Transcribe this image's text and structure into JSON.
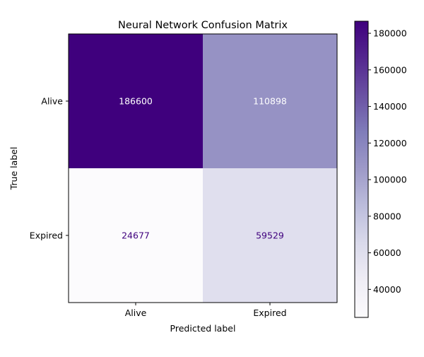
{
  "chart_data": {
    "type": "heatmap",
    "title": "Neural Network Confusion Matrix",
    "xlabel": "Predicted label",
    "ylabel": "True label",
    "x_categories": [
      "Alive",
      "Expired"
    ],
    "y_categories": [
      "Alive",
      "Expired"
    ],
    "values": [
      [
        186600,
        110898
      ],
      [
        24677,
        59529
      ]
    ],
    "colormap": "Purples",
    "colorbar": {
      "range": [
        24677,
        186600
      ],
      "ticks": [
        40000,
        60000,
        80000,
        100000,
        120000,
        140000,
        160000,
        180000
      ]
    }
  }
}
